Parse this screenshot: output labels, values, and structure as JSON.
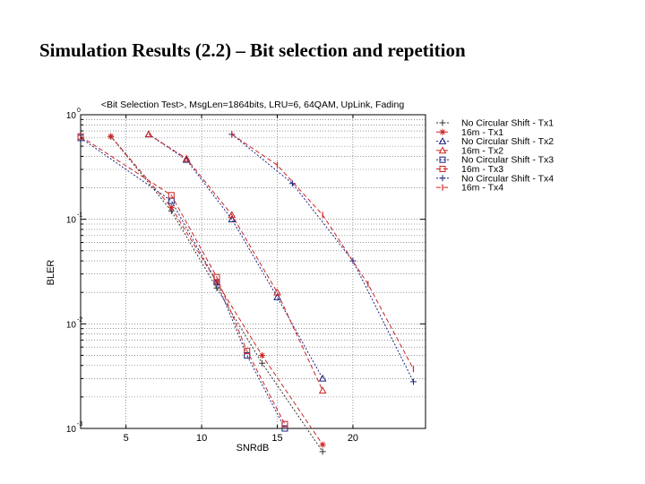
{
  "slide": {
    "title": "Simulation Results (2.2) – Bit selection and repetition"
  },
  "chart_data": {
    "type": "line",
    "title": "<Bit Selection Test>, MsgLen=1864bits, LRU=6, 64QAM, UpLink, Fading",
    "xlabel": "SNRdB",
    "ylabel": "BLER",
    "xlim": [
      2,
      24.8
    ],
    "ylim": [
      0.001,
      1
    ],
    "yscale": "log",
    "xticks": [
      5,
      10,
      15,
      20
    ],
    "xtick_labels": [
      "5",
      "10",
      "15",
      "20"
    ],
    "yticks": [
      1,
      0.1,
      0.01,
      0.001
    ],
    "ytick_labels": [
      "10",
      "10",
      "10",
      "10"
    ],
    "ytick_exponents": [
      "0",
      "-1",
      "-2",
      "-3"
    ],
    "grid": true,
    "legend_position": "right",
    "series": [
      {
        "name": "No Circular Shift - Tx1",
        "color": "#333333",
        "dash": "2,2",
        "marker": "plus",
        "x": [
          4,
          8,
          11,
          14,
          18
        ],
        "y": [
          0.62,
          0.12,
          0.022,
          0.0042,
          0.0006
        ]
      },
      {
        "name": "16m - Tx1",
        "color": "#cc2222",
        "dash": "5,3",
        "marker": "star",
        "x": [
          4,
          8,
          11,
          14,
          18
        ],
        "y": [
          0.62,
          0.13,
          0.025,
          0.005,
          0.0007
        ]
      },
      {
        "name": "No Circular Shift - Tx2",
        "color": "#1a237e",
        "dash": "2,2",
        "marker": "triangle",
        "x": [
          6.5,
          9,
          12,
          15,
          18
        ],
        "y": [
          0.65,
          0.37,
          0.1,
          0.018,
          0.003
        ]
      },
      {
        "name": "16m - Tx2",
        "color": "#cc2222",
        "dash": "5,3",
        "marker": "triangle",
        "x": [
          6.5,
          9,
          12,
          15,
          18
        ],
        "y": [
          0.65,
          0.38,
          0.11,
          0.02,
          0.0023
        ]
      },
      {
        "name": "No Circular Shift - Tx3",
        "color": "#1a237e",
        "dash": "2,2",
        "marker": "square",
        "x": [
          2,
          8,
          11,
          13,
          15.5
        ],
        "y": [
          0.6,
          0.15,
          0.025,
          0.005,
          0.001
        ]
      },
      {
        "name": "16m - Tx3",
        "color": "#cc2222",
        "dash": "5,3",
        "marker": "square",
        "x": [
          2,
          8,
          11,
          13,
          15.5
        ],
        "y": [
          0.62,
          0.17,
          0.028,
          0.0055,
          0.0011
        ]
      },
      {
        "name": "No Circular Shift - Tx4",
        "color": "#1a237e",
        "dash": "2,2",
        "marker": "plus",
        "x": [
          12,
          16,
          20,
          24
        ],
        "y": [
          0.65,
          0.22,
          0.04,
          0.0028
        ]
      },
      {
        "name": "16m - Tx4",
        "color": "#cc2222",
        "dash": "5,3",
        "marker": "tick",
        "x": [
          12,
          15,
          18,
          21,
          24
        ],
        "y": [
          0.65,
          0.33,
          0.11,
          0.024,
          0.0037
        ]
      }
    ]
  }
}
